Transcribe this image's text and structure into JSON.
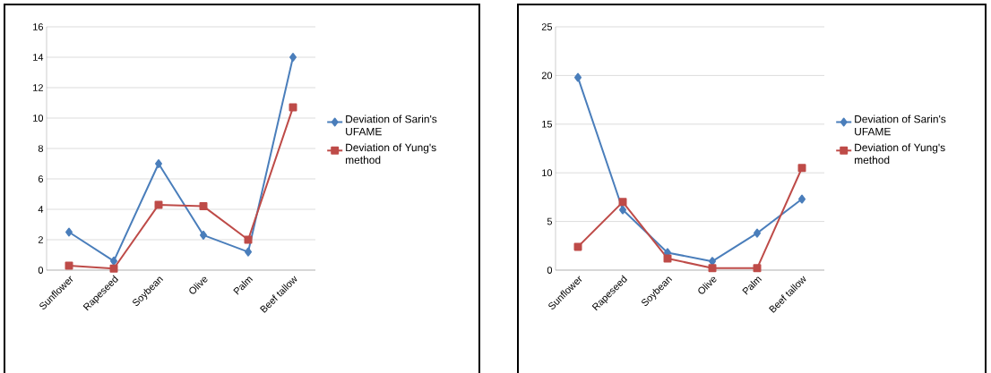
{
  "chart_data": [
    {
      "type": "line",
      "categories": [
        "Sunflower",
        "Rapeseed",
        "Soybean",
        "Olive",
        "Palm",
        "Beef tallow"
      ],
      "ylim": [
        0,
        16
      ],
      "yticks": [
        0,
        2,
        4,
        6,
        8,
        10,
        12,
        14,
        16
      ],
      "grid": "y",
      "legend": "right",
      "line_style": "solid",
      "series": [
        {
          "name": "Deviation of Sarin's UFAME",
          "color": "#4a7ebb",
          "marker": "diamond",
          "values": [
            2.5,
            0.6,
            7.0,
            2.3,
            1.2,
            14.0
          ]
        },
        {
          "name": "Deviation of Yung's method",
          "color": "#be4b48",
          "marker": "square",
          "values": [
            0.3,
            0.1,
            4.3,
            4.2,
            2.0,
            10.7
          ]
        }
      ]
    },
    {
      "type": "line",
      "categories": [
        "Sunflower",
        "Rapeseed",
        "Soybean",
        "Olive",
        "Palm",
        "Beef tallow"
      ],
      "ylim": [
        0,
        25
      ],
      "yticks": [
        0,
        5,
        10,
        15,
        20,
        25
      ],
      "grid": "y",
      "legend": "right",
      "line_style": "solid",
      "series": [
        {
          "name": "Deviation of Sarin's UFAME",
          "color": "#4a7ebb",
          "marker": "diamond",
          "values": [
            19.8,
            6.2,
            1.8,
            0.9,
            3.8,
            7.3
          ]
        },
        {
          "name": "Deviation of Yung's method",
          "color": "#be4b48",
          "marker": "square",
          "values": [
            2.4,
            7.0,
            1.2,
            0.2,
            0.2,
            10.5
          ]
        }
      ]
    }
  ]
}
